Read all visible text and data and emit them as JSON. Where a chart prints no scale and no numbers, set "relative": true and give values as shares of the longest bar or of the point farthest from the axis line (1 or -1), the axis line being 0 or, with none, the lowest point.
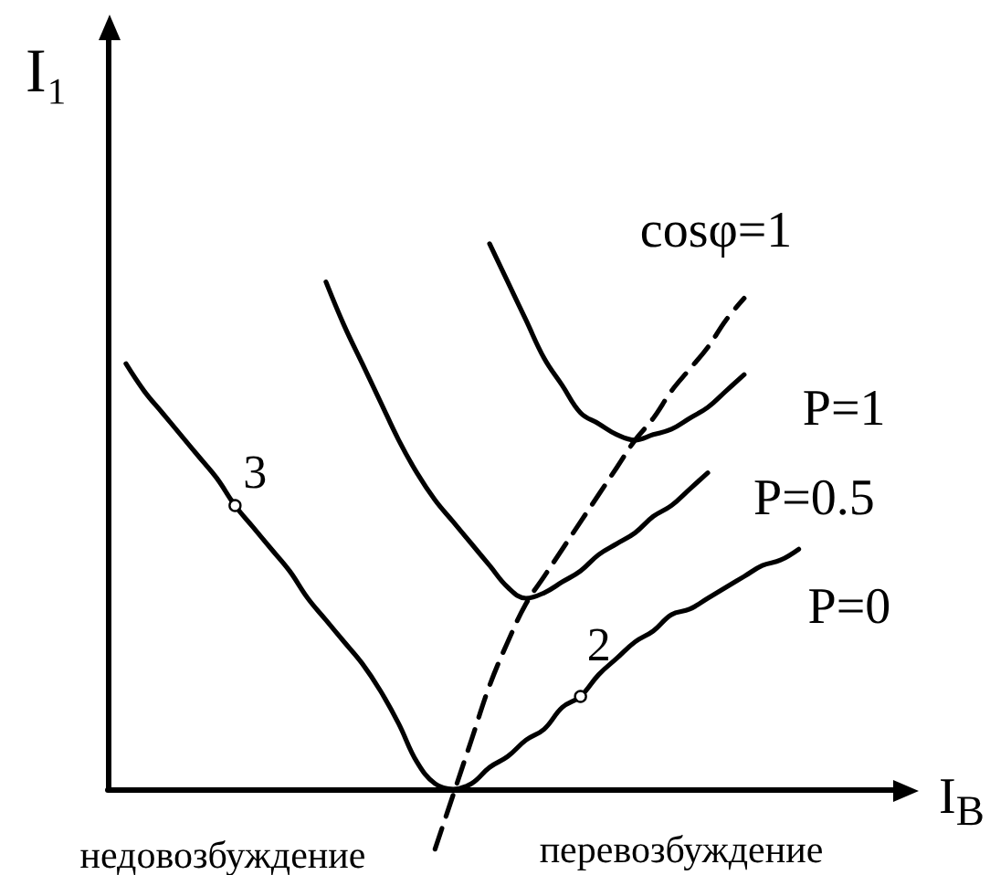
{
  "chart_data": {
    "type": "line",
    "relative": true,
    "xlabel": "I$_{В}$",
    "ylabel": "I₁",
    "categories": [
      null,
      null,
      null,
      null,
      null,
      null,
      null,
      null,
      null,
      null,
      null,
      null,
      null,
      null,
      null,
      null,
      null,
      null,
      null,
      null,
      null,
      null,
      null,
      null,
      null,
      null,
      null,
      null,
      null,
      null,
      null,
      null,
      null,
      null,
      null,
      null,
      null,
      null,
      null,
      null,
      null,
      null,
      null,
      null,
      null
    ],
    "series": [
      {
        "name": "P=0",
        "color": "#000000",
        "values": [
          null,
          0.78,
          0.73,
          0.69,
          0.65,
          0.61,
          0.57,
          0.52,
          0.48,
          0.44,
          0.4,
          0.35,
          0.31,
          0.27,
          0.23,
          0.18,
          0.12,
          0.05,
          0.01,
          0,
          0.01,
          0.04,
          0.06,
          0.09,
          0.11,
          0.15,
          0.17,
          0.21,
          0.24,
          0.27,
          0.29,
          0.32,
          0.33,
          0.35,
          0.37,
          0.39,
          0.41,
          0.42,
          0.44,
          null,
          null,
          null,
          null,
          null,
          null
        ]
      },
      {
        "name": "P=0.5",
        "color": "#000000",
        "values": [
          null,
          null,
          null,
          null,
          null,
          null,
          null,
          null,
          null,
          null,
          null,
          null,
          0.93,
          0.85,
          0.78,
          0.71,
          0.64,
          0.58,
          0.53,
          0.49,
          0.45,
          0.41,
          0.37,
          0.35,
          0.36,
          0.38,
          0.4,
          0.43,
          0.45,
          0.47,
          0.5,
          0.52,
          0.55,
          0.58,
          null,
          null,
          null,
          null,
          null,
          null,
          null,
          null,
          null,
          null,
          null
        ]
      },
      {
        "name": "P=1",
        "color": "#000000",
        "values": [
          null,
          null,
          null,
          null,
          null,
          null,
          null,
          null,
          null,
          null,
          null,
          null,
          null,
          null,
          null,
          null,
          null,
          null,
          null,
          null,
          null,
          1,
          0.93,
          0.86,
          0.79,
          0.74,
          0.69,
          0.67,
          0.65,
          0.64,
          0.65,
          0.66,
          0.68,
          0.7,
          0.73,
          0.76,
          null,
          null,
          null,
          null,
          null,
          null,
          null,
          null,
          null
        ]
      },
      {
        "name": "cosφ=1",
        "color": "#000000",
        "line_style": "dashed",
        "values": [
          null,
          null,
          null,
          null,
          null,
          null,
          null,
          null,
          null,
          null,
          null,
          null,
          null,
          null,
          null,
          null,
          null,
          null,
          -0.11,
          -0.01,
          0.09,
          0.19,
          0.27,
          0.34,
          0.39,
          0.44,
          0.49,
          0.54,
          0.59,
          0.64,
          0.68,
          0.73,
          0.77,
          0.81,
          0.86,
          0.9,
          null,
          null,
          null,
          null,
          null,
          null,
          null,
          null,
          null
        ]
      }
    ],
    "annotations": [
      "3",
      "2",
      "недовозбуждение",
      "перевозбуждение"
    ]
  }
}
